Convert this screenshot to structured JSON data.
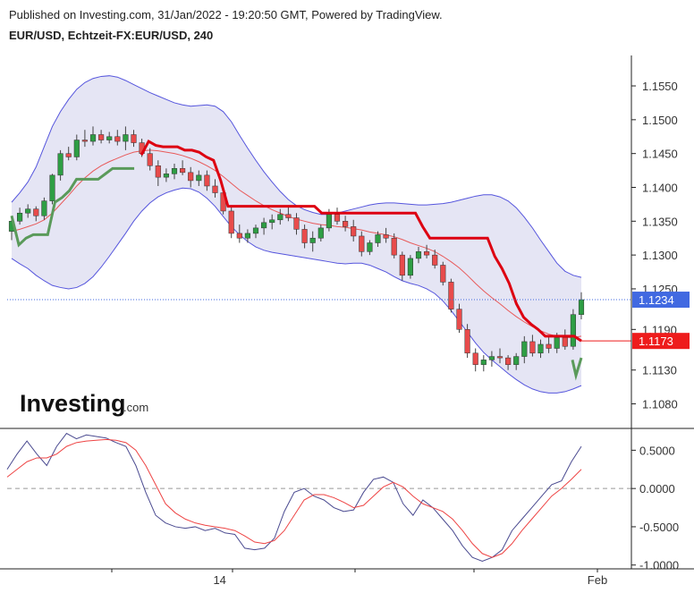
{
  "header": {
    "published": "Published on Investing.com, 31/Jan/2022 - 19:20:50 GMT, Powered by TradingView.",
    "symbol": "EUR/USD, Echtzeit-FX:EUR/USD, 240"
  },
  "logo": {
    "brand": "Investing",
    "suffix": ".com"
  },
  "colors": {
    "up": "#2e9e44",
    "down": "#e84b4b",
    "band_fill": "#dcdcf0",
    "band_line": "#5555dd",
    "ma": "#e85a5a",
    "stop_red": "#dd0011",
    "stop_green": "#5a9a5a",
    "osc_fast": "#4a4a90",
    "osc_slow": "#ee4444",
    "price_tag": "#4169e1",
    "stop_tag": "#ee1c1c"
  },
  "chart_data": [
    {
      "type": "candlestick",
      "title": "EUR/USD, Echtzeit-FX:EUR/USD, 240",
      "y_ticks": [
        "1.1550",
        "1.1500",
        "1.1450",
        "1.1400",
        "1.1350",
        "1.1300",
        "1.1250",
        "1.1190",
        "1.1130",
        "1.1080"
      ],
      "ylim": [
        1.1045,
        1.1595
      ],
      "x_ticks": [
        "14",
        "Feb"
      ],
      "x_tick_index": {
        "14": 27,
        "Feb": 160
      },
      "last_price": {
        "label": "1.1234",
        "value": 1.1234
      },
      "stop_level": {
        "label": "1.1173",
        "value": 1.1173
      },
      "candles": [
        [
          1.1335,
          1.1355,
          1.1322,
          1.135
        ],
        [
          1.135,
          1.137,
          1.1345,
          1.1362
        ],
        [
          1.1362,
          1.1375,
          1.1355,
          1.1368
        ],
        [
          1.1368,
          1.1372,
          1.135,
          1.1358
        ],
        [
          1.1358,
          1.1385,
          1.1352,
          1.138
        ],
        [
          1.138,
          1.142,
          1.1375,
          1.1418
        ],
        [
          1.1418,
          1.1455,
          1.141,
          1.145
        ],
        [
          1.145,
          1.146,
          1.144,
          1.1445
        ],
        [
          1.1445,
          1.1478,
          1.144,
          1.147
        ],
        [
          1.147,
          1.1485,
          1.146,
          1.1468
        ],
        [
          1.1468,
          1.149,
          1.1462,
          1.1478
        ],
        [
          1.1478,
          1.1485,
          1.1465,
          1.147
        ],
        [
          1.147,
          1.1482,
          1.1465,
          1.1475
        ],
        [
          1.1475,
          1.1485,
          1.1462,
          1.1468
        ],
        [
          1.1468,
          1.149,
          1.1455,
          1.1478
        ],
        [
          1.1478,
          1.1485,
          1.146,
          1.1466
        ],
        [
          1.1466,
          1.1472,
          1.1445,
          1.145
        ],
        [
          1.145,
          1.1458,
          1.1425,
          1.1432
        ],
        [
          1.1432,
          1.144,
          1.1402,
          1.1415
        ],
        [
          1.1415,
          1.1428,
          1.1408,
          1.142
        ],
        [
          1.142,
          1.1435,
          1.1412,
          1.1428
        ],
        [
          1.1428,
          1.144,
          1.1418,
          1.1422
        ],
        [
          1.1422,
          1.143,
          1.14,
          1.141
        ],
        [
          1.141,
          1.1425,
          1.1402,
          1.1418
        ],
        [
          1.1418,
          1.1425,
          1.1395,
          1.1402
        ],
        [
          1.1402,
          1.1412,
          1.1385,
          1.1392
        ],
        [
          1.1392,
          1.14,
          1.136,
          1.1365
        ],
        [
          1.1365,
          1.1372,
          1.1325,
          1.1332
        ],
        [
          1.1332,
          1.1345,
          1.1318,
          1.1325
        ],
        [
          1.1325,
          1.1338,
          1.1318,
          1.1332
        ],
        [
          1.1332,
          1.1345,
          1.1325,
          1.134
        ],
        [
          1.134,
          1.1355,
          1.133,
          1.1348
        ],
        [
          1.1348,
          1.136,
          1.1338,
          1.1352
        ],
        [
          1.1352,
          1.1368,
          1.1345,
          1.136
        ],
        [
          1.136,
          1.1372,
          1.135,
          1.1355
        ],
        [
          1.1355,
          1.1362,
          1.133,
          1.1338
        ],
        [
          1.1338,
          1.1345,
          1.131,
          1.1318
        ],
        [
          1.1318,
          1.1335,
          1.1305,
          1.1325
        ],
        [
          1.1325,
          1.1345,
          1.132,
          1.134
        ],
        [
          1.134,
          1.1368,
          1.1335,
          1.136
        ],
        [
          1.136,
          1.137,
          1.1345,
          1.135
        ],
        [
          1.135,
          1.1358,
          1.1335,
          1.1342
        ],
        [
          1.1342,
          1.1352,
          1.132,
          1.1328
        ],
        [
          1.1328,
          1.1335,
          1.1298,
          1.1305
        ],
        [
          1.1305,
          1.1322,
          1.13,
          1.1318
        ],
        [
          1.1318,
          1.1335,
          1.1312,
          1.133
        ],
        [
          1.133,
          1.134,
          1.1318,
          1.1325
        ],
        [
          1.1325,
          1.1332,
          1.1295,
          1.13
        ],
        [
          1.13,
          1.1305,
          1.1262,
          1.127
        ],
        [
          1.127,
          1.13,
          1.1265,
          1.1295
        ],
        [
          1.1295,
          1.1312,
          1.1288,
          1.1305
        ],
        [
          1.1305,
          1.1315,
          1.1295,
          1.13
        ],
        [
          1.13,
          1.1308,
          1.128,
          1.1285
        ],
        [
          1.1285,
          1.129,
          1.1255,
          1.126
        ],
        [
          1.126,
          1.1265,
          1.1215,
          1.122
        ],
        [
          1.122,
          1.1228,
          1.1185,
          1.119
        ],
        [
          1.119,
          1.1198,
          1.1148,
          1.1155
        ],
        [
          1.1155,
          1.1162,
          1.1128,
          1.1138
        ],
        [
          1.1138,
          1.1152,
          1.1128,
          1.1145
        ],
        [
          1.1145,
          1.1158,
          1.1135,
          1.115
        ],
        [
          1.115,
          1.1162,
          1.114,
          1.1148
        ],
        [
          1.1148,
          1.1152,
          1.113,
          1.1138
        ],
        [
          1.1138,
          1.1155,
          1.113,
          1.115
        ],
        [
          1.115,
          1.118,
          1.114,
          1.1172
        ],
        [
          1.1172,
          1.1182,
          1.115,
          1.1155
        ],
        [
          1.1155,
          1.1175,
          1.1148,
          1.1168
        ],
        [
          1.1168,
          1.118,
          1.1155,
          1.1162
        ],
        [
          1.1162,
          1.1185,
          1.1155,
          1.1178
        ],
        [
          1.1178,
          1.119,
          1.116,
          1.1165
        ],
        [
          1.1165,
          1.122,
          1.116,
          1.1212
        ],
        [
          1.1212,
          1.1245,
          1.1205,
          1.1234
        ]
      ],
      "ma": [
        1.1335,
        1.1338,
        1.1342,
        1.1346,
        1.1352,
        1.1362,
        1.1375,
        1.1388,
        1.1402,
        1.1414,
        1.1424,
        1.1432,
        1.1438,
        1.1443,
        1.1448,
        1.1452,
        1.1454,
        1.1455,
        1.1454,
        1.1452,
        1.145,
        1.1447,
        1.1443,
        1.1438,
        1.1432,
        1.1425,
        1.1416,
        1.1406,
        1.1396,
        1.1388,
        1.138,
        1.1373,
        1.1367,
        1.1362,
        1.1357,
        1.1353,
        1.135,
        1.1347,
        1.1345,
        1.1344,
        1.1342,
        1.1341,
        1.1339,
        1.1337,
        1.1334,
        1.1332,
        1.133,
        1.1327,
        1.1323,
        1.1318,
        1.1314,
        1.131,
        1.1305,
        1.1298,
        1.129,
        1.1281,
        1.127,
        1.1258,
        1.1247,
        1.1237,
        1.1228,
        1.1218,
        1.1209,
        1.1201,
        1.1194,
        1.1188,
        1.1183,
        1.118,
        1.1178,
        1.1178,
        1.118
      ],
      "band_upper": [
        1.1378,
        1.1392,
        1.1408,
        1.143,
        1.146,
        1.149,
        1.1512,
        1.153,
        1.1545,
        1.1555,
        1.1561,
        1.1564,
        1.1565,
        1.1563,
        1.1558,
        1.1552,
        1.1546,
        1.154,
        1.1535,
        1.153,
        1.1525,
        1.1522,
        1.152,
        1.1521,
        1.1522,
        1.152,
        1.1512,
        1.1497,
        1.1477,
        1.1458,
        1.144,
        1.1423,
        1.1408,
        1.1394,
        1.1382,
        1.1373,
        1.1367,
        1.1363,
        1.136,
        1.136,
        1.1362,
        1.1365,
        1.1368,
        1.1371,
        1.1374,
        1.1376,
        1.1377,
        1.1377,
        1.1376,
        1.1375,
        1.1374,
        1.1374,
        1.1375,
        1.1376,
        1.1378,
        1.1381,
        1.1384,
        1.1387,
        1.1389,
        1.1389,
        1.1386,
        1.138,
        1.137,
        1.1356,
        1.134,
        1.1322,
        1.1305,
        1.1288,
        1.1276,
        1.127,
        1.1267
      ],
      "band_lower": [
        1.1295,
        1.1287,
        1.128,
        1.127,
        1.1262,
        1.1255,
        1.1252,
        1.125,
        1.1252,
        1.1258,
        1.1268,
        1.1282,
        1.1298,
        1.1315,
        1.1332,
        1.135,
        1.1365,
        1.1377,
        1.1386,
        1.1392,
        1.1396,
        1.1399,
        1.1398,
        1.1393,
        1.1384,
        1.1372,
        1.1357,
        1.1342,
        1.133,
        1.132,
        1.1312,
        1.1307,
        1.1304,
        1.1302,
        1.13,
        1.1298,
        1.1296,
        1.1294,
        1.1292,
        1.129,
        1.1288,
        1.1287,
        1.1288,
        1.1288,
        1.1285,
        1.128,
        1.1275,
        1.1268,
        1.1262,
        1.1258,
        1.1255,
        1.125,
        1.1243,
        1.1232,
        1.1218,
        1.1202,
        1.1186,
        1.117,
        1.1156,
        1.1145,
        1.1135,
        1.1125,
        1.1116,
        1.1108,
        1.1102,
        1.1098,
        1.1096,
        1.1096,
        1.1098,
        1.1102,
        1.1107
      ],
      "stop": [
        {
          "i": 0,
          "v": 1.1358,
          "trend": "up"
        },
        {
          "i": 1,
          "v": 1.1315,
          "trend": "up"
        },
        {
          "i": 2,
          "v": 1.1325,
          "trend": "up"
        },
        {
          "i": 3,
          "v": 1.133,
          "trend": "up"
        },
        {
          "i": 4,
          "v": 1.133,
          "trend": "up"
        },
        {
          "i": 5,
          "v": 1.133,
          "trend": "up"
        },
        {
          "i": 6,
          "v": 1.1378,
          "trend": "up"
        },
        {
          "i": 7,
          "v": 1.1385,
          "trend": "up"
        },
        {
          "i": 8,
          "v": 1.1395,
          "trend": "up"
        },
        {
          "i": 9,
          "v": 1.1412,
          "trend": "up"
        },
        {
          "i": 10,
          "v": 1.1412,
          "trend": "up"
        },
        {
          "i": 11,
          "v": 1.1412,
          "trend": "up"
        },
        {
          "i": 12,
          "v": 1.1412,
          "trend": "up"
        },
        {
          "i": 13,
          "v": 1.142,
          "trend": "up"
        },
        {
          "i": 14,
          "v": 1.1428,
          "trend": "up"
        },
        {
          "i": 15,
          "v": 1.1428,
          "trend": "up"
        },
        {
          "i": 16,
          "v": 1.1428,
          "trend": "up"
        },
        {
          "i": 17,
          "v": 1.1428,
          "trend": "up"
        },
        {
          "i": 18,
          "v": 1.1448,
          "trend": "down"
        },
        {
          "i": 19,
          "v": 1.1468,
          "trend": "down"
        },
        {
          "i": 20,
          "v": 1.1462,
          "trend": "down"
        },
        {
          "i": 21,
          "v": 1.146,
          "trend": "down"
        },
        {
          "i": 22,
          "v": 1.146,
          "trend": "down"
        },
        {
          "i": 23,
          "v": 1.146,
          "trend": "down"
        },
        {
          "i": 24,
          "v": 1.1455,
          "trend": "down"
        },
        {
          "i": 25,
          "v": 1.1455,
          "trend": "down"
        },
        {
          "i": 26,
          "v": 1.1452,
          "trend": "down"
        },
        {
          "i": 27,
          "v": 1.1445,
          "trend": "down"
        },
        {
          "i": 28,
          "v": 1.144,
          "trend": "down"
        },
        {
          "i": 29,
          "v": 1.141,
          "trend": "down"
        },
        {
          "i": 30,
          "v": 1.1372,
          "trend": "down"
        },
        {
          "i": 31,
          "v": 1.1372,
          "trend": "down"
        },
        {
          "i": 42,
          "v": 1.1372,
          "trend": "down"
        },
        {
          "i": 43,
          "v": 1.1362,
          "trend": "down"
        },
        {
          "i": 56,
          "v": 1.1362,
          "trend": "down"
        },
        {
          "i": 57,
          "v": 1.1342,
          "trend": "down"
        },
        {
          "i": 58,
          "v": 1.1325,
          "trend": "down"
        },
        {
          "i": 66,
          "v": 1.1325,
          "trend": "down"
        },
        {
          "i": 67,
          "v": 1.1298,
          "trend": "down"
        },
        {
          "i": 68,
          "v": 1.128,
          "trend": "down"
        },
        {
          "i": 69,
          "v": 1.1258,
          "trend": "down"
        },
        {
          "i": 70,
          "v": 1.1228,
          "trend": "down"
        },
        {
          "i": 71,
          "v": 1.1208,
          "trend": "down"
        },
        {
          "i": 72,
          "v": 1.1198,
          "trend": "down"
        },
        {
          "i": 73,
          "v": 1.119,
          "trend": "down"
        },
        {
          "i": 74,
          "v": 1.118,
          "trend": "down"
        },
        {
          "i": 78,
          "v": 1.118,
          "trend": "down"
        },
        {
          "i": 79,
          "v": 1.1173,
          "trend": "down"
        }
      ]
    },
    {
      "type": "line",
      "y_ticks": [
        "0.5000",
        "0.0000",
        "-0.5000",
        "-1.0000"
      ],
      "ylim": [
        -1.05,
        0.75
      ],
      "zero_line": true,
      "series": [
        {
          "values": [
            0.25,
            0.45,
            0.62,
            0.45,
            0.3,
            0.55,
            0.72,
            0.65,
            0.7,
            0.68,
            0.66,
            0.6,
            0.55,
            0.3,
            -0.05,
            -0.35,
            -0.45,
            -0.5,
            -0.52,
            -0.5,
            -0.55,
            -0.52,
            -0.58,
            -0.6,
            -0.78,
            -0.8,
            -0.78,
            -0.65,
            -0.3,
            -0.05,
            0.0,
            -0.1,
            -0.15,
            -0.25,
            -0.3,
            -0.28,
            -0.05,
            0.12,
            0.15,
            0.08,
            -0.2,
            -0.35,
            -0.15,
            -0.25,
            -0.4,
            -0.55,
            -0.75,
            -0.9,
            -0.95,
            -0.9,
            -0.8,
            -0.55,
            -0.4,
            -0.25,
            -0.1,
            0.05,
            0.1,
            0.35,
            0.55
          ]
        },
        {
          "values": [
            0.15,
            0.25,
            0.35,
            0.4,
            0.4,
            0.45,
            0.55,
            0.6,
            0.62,
            0.63,
            0.64,
            0.63,
            0.6,
            0.5,
            0.3,
            0.05,
            -0.2,
            -0.32,
            -0.4,
            -0.45,
            -0.48,
            -0.5,
            -0.52,
            -0.55,
            -0.62,
            -0.7,
            -0.72,
            -0.68,
            -0.55,
            -0.35,
            -0.15,
            -0.08,
            -0.08,
            -0.12,
            -0.18,
            -0.25,
            -0.22,
            -0.1,
            0.02,
            0.08,
            0.02,
            -0.1,
            -0.2,
            -0.25,
            -0.3,
            -0.4,
            -0.55,
            -0.72,
            -0.85,
            -0.9,
            -0.85,
            -0.72,
            -0.55,
            -0.4,
            -0.25,
            -0.1,
            0.0,
            0.12,
            0.25
          ]
        }
      ]
    }
  ]
}
